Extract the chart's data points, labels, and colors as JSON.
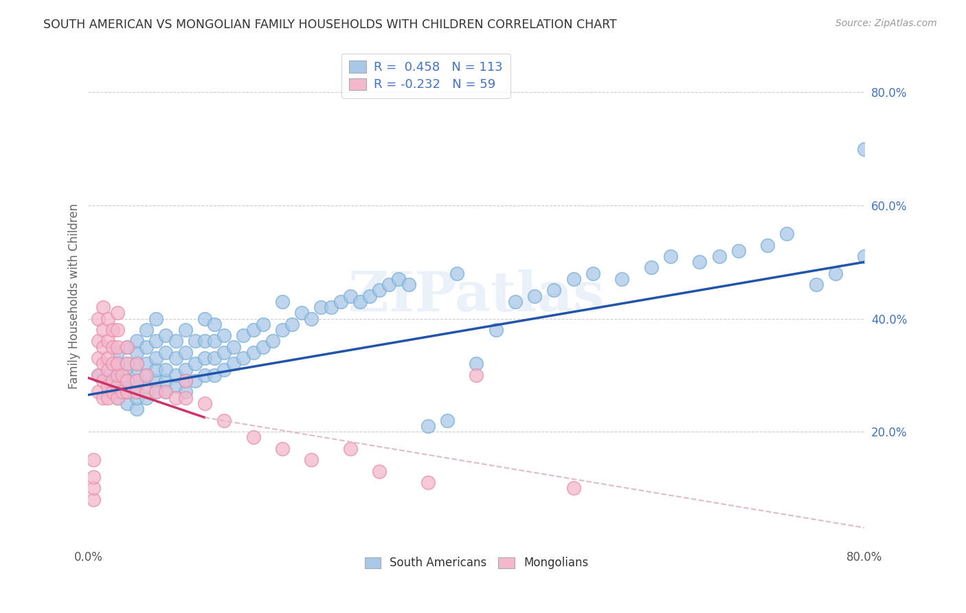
{
  "title": "SOUTH AMERICAN VS MONGOLIAN FAMILY HOUSEHOLDS WITH CHILDREN CORRELATION CHART",
  "source": "Source: ZipAtlas.com",
  "ylabel": "Family Households with Children",
  "xlim": [
    0.0,
    0.8
  ],
  "ylim": [
    0.0,
    0.88
  ],
  "xticks": [
    0.0,
    0.1,
    0.2,
    0.3,
    0.4,
    0.5,
    0.6,
    0.7,
    0.8
  ],
  "xticklabels": [
    "0.0%",
    "",
    "",
    "",
    "",
    "",
    "",
    "",
    "80.0%"
  ],
  "yticks_right": [
    0.2,
    0.4,
    0.6,
    0.8
  ],
  "ytick_right_labels": [
    "20.0%",
    "40.0%",
    "60.0%",
    "80.0%"
  ],
  "R_blue": 0.458,
  "N_blue": 113,
  "R_pink": -0.232,
  "N_pink": 59,
  "blue_color": "#a8c8e8",
  "blue_edge_color": "#7aafd4",
  "pink_color": "#f4b8cc",
  "pink_edge_color": "#e890aa",
  "blue_line_color": "#2255aa",
  "pink_line_color": "#cc3366",
  "pink_dashed_color": "#ddbbcc",
  "watermark": "ZIPatlas",
  "legend_label_blue": "South Americans",
  "legend_label_pink": "Mongolians",
  "blue_scatter_x": [
    0.01,
    0.02,
    0.02,
    0.02,
    0.03,
    0.03,
    0.03,
    0.03,
    0.03,
    0.03,
    0.03,
    0.04,
    0.04,
    0.04,
    0.04,
    0.04,
    0.04,
    0.04,
    0.05,
    0.05,
    0.05,
    0.05,
    0.05,
    0.05,
    0.05,
    0.05,
    0.05,
    0.06,
    0.06,
    0.06,
    0.06,
    0.06,
    0.06,
    0.07,
    0.07,
    0.07,
    0.07,
    0.07,
    0.07,
    0.08,
    0.08,
    0.08,
    0.08,
    0.08,
    0.09,
    0.09,
    0.09,
    0.09,
    0.1,
    0.1,
    0.1,
    0.1,
    0.1,
    0.11,
    0.11,
    0.11,
    0.12,
    0.12,
    0.12,
    0.12,
    0.13,
    0.13,
    0.13,
    0.13,
    0.14,
    0.14,
    0.14,
    0.15,
    0.15,
    0.16,
    0.16,
    0.17,
    0.17,
    0.18,
    0.18,
    0.19,
    0.2,
    0.2,
    0.21,
    0.22,
    0.23,
    0.24,
    0.25,
    0.26,
    0.27,
    0.28,
    0.29,
    0.3,
    0.31,
    0.32,
    0.33,
    0.35,
    0.37,
    0.38,
    0.4,
    0.42,
    0.44,
    0.46,
    0.48,
    0.5,
    0.52,
    0.55,
    0.58,
    0.6,
    0.63,
    0.65,
    0.67,
    0.7,
    0.72,
    0.75,
    0.77,
    0.8,
    0.8
  ],
  "blue_scatter_y": [
    0.3,
    0.27,
    0.29,
    0.31,
    0.26,
    0.28,
    0.3,
    0.32,
    0.34,
    0.29,
    0.27,
    0.25,
    0.28,
    0.3,
    0.32,
    0.35,
    0.27,
    0.29,
    0.24,
    0.26,
    0.28,
    0.3,
    0.32,
    0.34,
    0.36,
    0.29,
    0.27,
    0.26,
    0.28,
    0.3,
    0.32,
    0.35,
    0.38,
    0.27,
    0.29,
    0.31,
    0.33,
    0.36,
    0.4,
    0.27,
    0.29,
    0.31,
    0.34,
    0.37,
    0.28,
    0.3,
    0.33,
    0.36,
    0.27,
    0.29,
    0.31,
    0.34,
    0.38,
    0.29,
    0.32,
    0.36,
    0.3,
    0.33,
    0.36,
    0.4,
    0.3,
    0.33,
    0.36,
    0.39,
    0.31,
    0.34,
    0.37,
    0.32,
    0.35,
    0.33,
    0.37,
    0.34,
    0.38,
    0.35,
    0.39,
    0.36,
    0.38,
    0.43,
    0.39,
    0.41,
    0.4,
    0.42,
    0.42,
    0.43,
    0.44,
    0.43,
    0.44,
    0.45,
    0.46,
    0.47,
    0.46,
    0.21,
    0.22,
    0.48,
    0.32,
    0.38,
    0.43,
    0.44,
    0.45,
    0.47,
    0.48,
    0.47,
    0.49,
    0.51,
    0.5,
    0.51,
    0.52,
    0.53,
    0.55,
    0.46,
    0.48,
    0.51,
    0.7
  ],
  "pink_scatter_x": [
    0.005,
    0.005,
    0.005,
    0.005,
    0.01,
    0.01,
    0.01,
    0.01,
    0.01,
    0.015,
    0.015,
    0.015,
    0.015,
    0.015,
    0.015,
    0.02,
    0.02,
    0.02,
    0.02,
    0.02,
    0.02,
    0.025,
    0.025,
    0.025,
    0.025,
    0.025,
    0.03,
    0.03,
    0.03,
    0.03,
    0.03,
    0.03,
    0.03,
    0.035,
    0.035,
    0.04,
    0.04,
    0.04,
    0.04,
    0.05,
    0.05,
    0.05,
    0.06,
    0.06,
    0.07,
    0.08,
    0.09,
    0.1,
    0.1,
    0.12,
    0.14,
    0.17,
    0.2,
    0.23,
    0.27,
    0.3,
    0.35,
    0.4,
    0.5
  ],
  "pink_scatter_y": [
    0.08,
    0.1,
    0.12,
    0.15,
    0.27,
    0.3,
    0.33,
    0.36,
    0.4,
    0.26,
    0.29,
    0.32,
    0.35,
    0.38,
    0.42,
    0.26,
    0.28,
    0.31,
    0.33,
    0.36,
    0.4,
    0.27,
    0.29,
    0.32,
    0.35,
    0.38,
    0.26,
    0.28,
    0.3,
    0.32,
    0.35,
    0.38,
    0.41,
    0.27,
    0.3,
    0.27,
    0.29,
    0.32,
    0.35,
    0.27,
    0.29,
    0.32,
    0.27,
    0.3,
    0.27,
    0.27,
    0.26,
    0.26,
    0.29,
    0.25,
    0.22,
    0.19,
    0.17,
    0.15,
    0.17,
    0.13,
    0.11,
    0.3,
    0.1
  ],
  "background_color": "#ffffff",
  "grid_color": "#cccccc",
  "title_color": "#333333",
  "axis_label_color": "#666666",
  "right_tick_color": "#4472c4",
  "blue_line_start_x": 0.0,
  "blue_line_start_y": 0.265,
  "blue_line_end_x": 0.8,
  "blue_line_end_y": 0.5,
  "pink_line_start_x": 0.0,
  "pink_line_start_y": 0.295,
  "pink_line_solid_end_x": 0.12,
  "pink_line_solid_end_y": 0.225,
  "pink_line_dash_end_x": 0.8,
  "pink_line_dash_end_y": 0.03
}
